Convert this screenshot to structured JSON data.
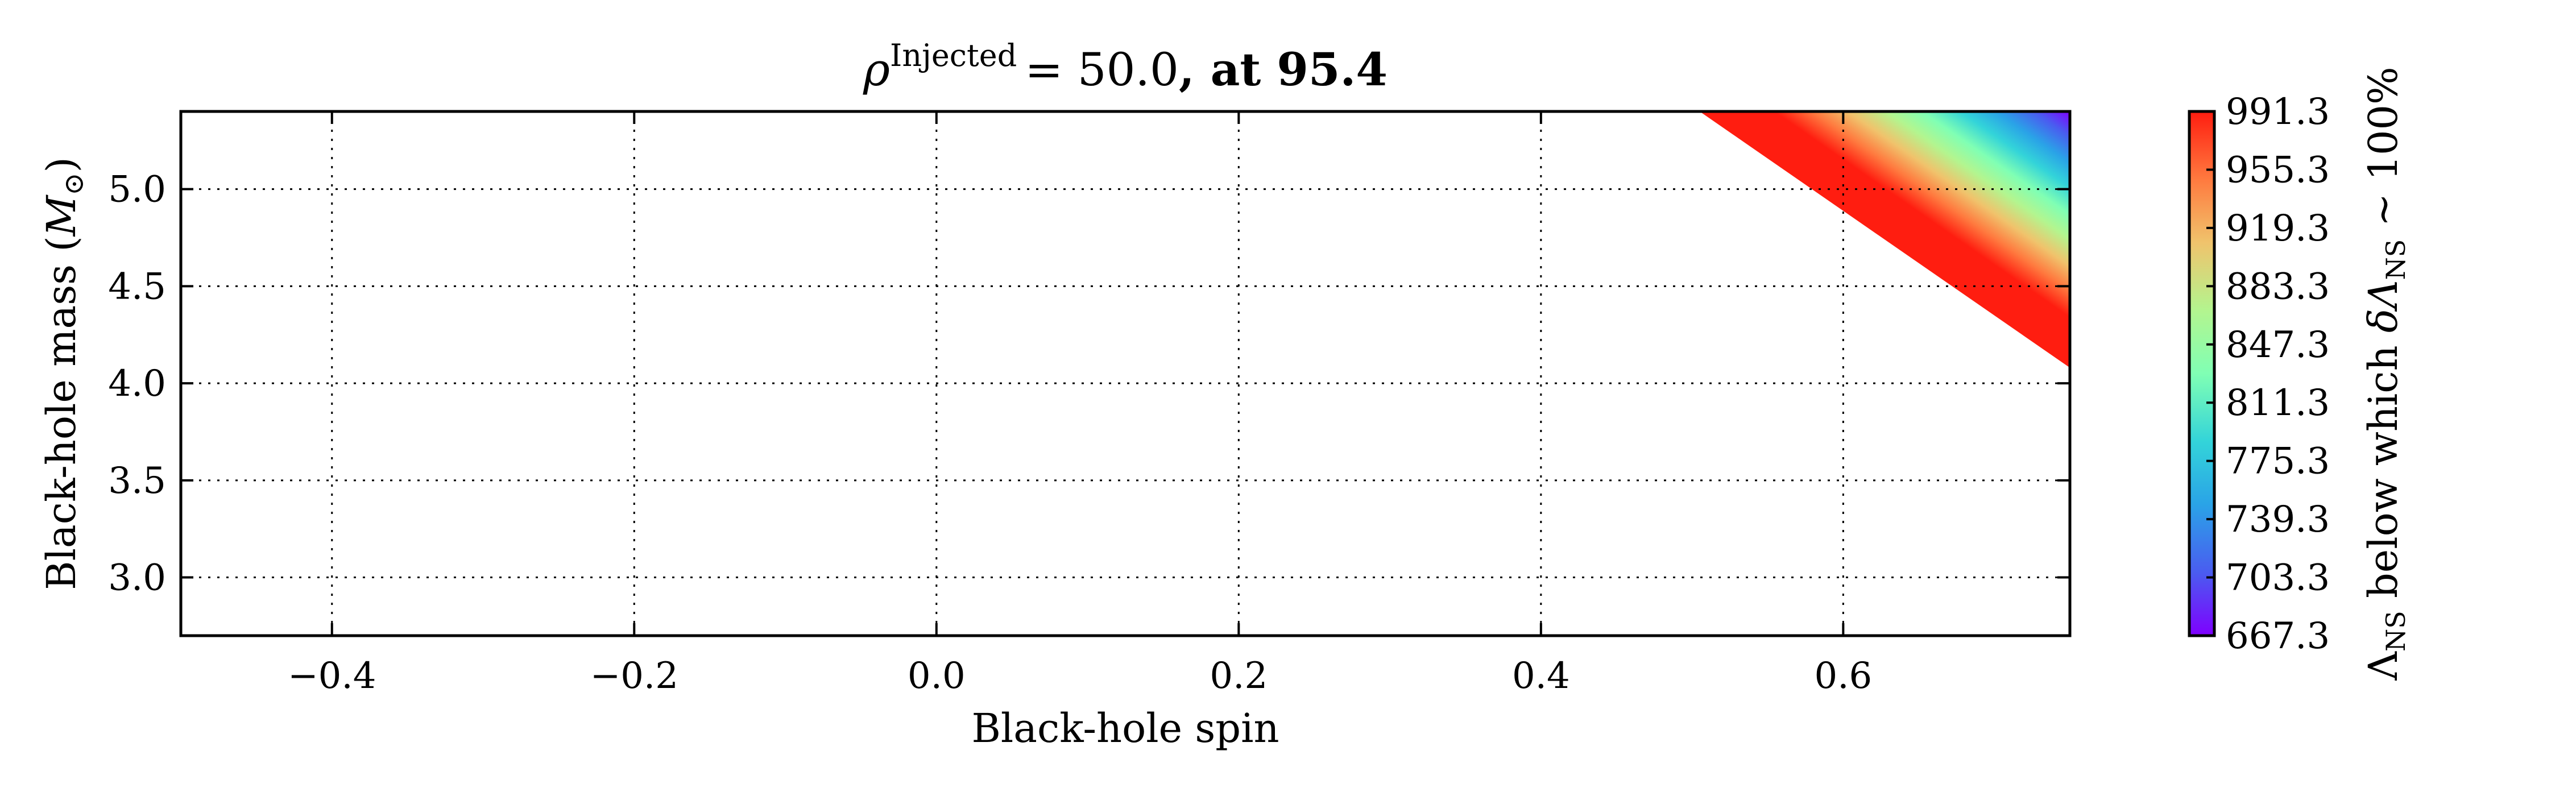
{
  "chart_data": {
    "type": "heatmap",
    "title": {
      "symbol": "ρ",
      "superscript": "Injected",
      "equals": "= 50.0",
      "suffix": ", at 95.4"
    },
    "xlabel": "Black-hole spin",
    "ylabel": {
      "main": "Black-hole mass (",
      "symbol": "M",
      "sub": "⊙",
      "close": ")"
    },
    "xlim": [
      -0.5,
      0.75
    ],
    "ylim": [
      2.7,
      5.4
    ],
    "xticks": [
      -0.4,
      -0.2,
      0.0,
      0.2,
      0.4,
      0.6
    ],
    "xtick_labels": [
      "−0.4",
      "−0.2",
      "0.0",
      "0.2",
      "0.4",
      "0.6"
    ],
    "yticks": [
      3.0,
      3.5,
      4.0,
      4.5,
      5.0
    ],
    "ytick_labels": [
      "3.0",
      "3.5",
      "4.0",
      "4.5",
      "5.0"
    ],
    "grid": true,
    "colormap": "rainbow",
    "filled_region": {
      "description_vertices_data_units": [
        [
          0.505,
          5.4
        ],
        [
          0.75,
          5.4
        ],
        [
          0.75,
          4.08
        ]
      ],
      "boundary_line": {
        "from": [
          0.505,
          5.4
        ],
        "to": [
          0.75,
          4.08
        ]
      },
      "value_max_at_boundary": 991.3,
      "value_min_at_corner": [
        0.75,
        5.4
      ]
    },
    "colorbar": {
      "tick_labels": [
        "991.3",
        "955.3",
        "919.3",
        "883.3",
        "847.3",
        "811.3",
        "775.3",
        "739.3",
        "703.3",
        "667.3"
      ],
      "vmin": 667.3,
      "vmax": 991.3,
      "label": {
        "lambda": "Λ",
        "lambda_sub": "NS",
        "middle": " below which ",
        "delta": "δΛ",
        "delta_sub": "NS",
        "tail": " ∼ 100%"
      }
    }
  }
}
